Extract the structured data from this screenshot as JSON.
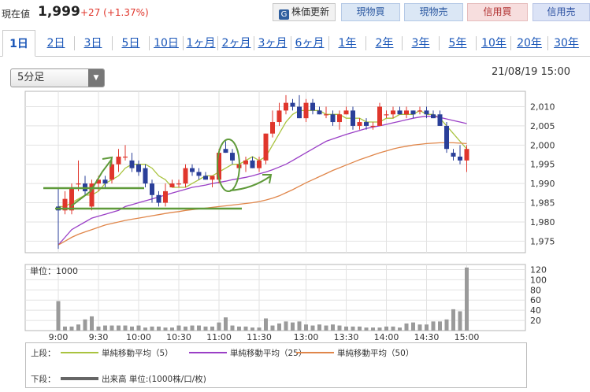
{
  "header": {
    "price_label": "現在値",
    "price": "1,999",
    "change": "+27 (+1.37%)",
    "buttons": {
      "update": "株価更新",
      "buy_spot": "現物買",
      "sell_spot": "現物売",
      "buy_margin": "信用買",
      "sell_margin": "信用売"
    }
  },
  "tabs": [
    "1日",
    "2日",
    "3日",
    "5日",
    "10日",
    "1ヶ月",
    "2ヶ月",
    "3ヶ月",
    "6ヶ月",
    "1年",
    "2年",
    "3年",
    "5年",
    "10年",
    "20年",
    "30年"
  ],
  "active_tab": "1日",
  "interval_select": "5分足",
  "datetime": "21/08/19 15:00",
  "legend": {
    "upper_label": "上段：",
    "lower_label": "下段：",
    "ma5": "単純移動平均（5）",
    "ma25": "単純移動平均（25）",
    "ma50": "単純移動平均（50）",
    "volume": "出来高 単位:(1000株/口/枚)"
  },
  "colors": {
    "up": "#e0362c",
    "down": "#2a3f99",
    "ma5": "#a9c33f",
    "ma25": "#9a3fc6",
    "ma50": "#e0864a",
    "volume": "#9a9a9a",
    "annotation": "#5f9a3a"
  },
  "chart_data": [
    {
      "type": "candlestick",
      "title": "",
      "x_tick_labels": [
        "9:00",
        "9:30",
        "10:00",
        "10:30",
        "11:00",
        "11:30",
        "13:00",
        "13:30",
        "14:00",
        "14:30",
        "15:00"
      ],
      "ylim": [
        1972,
        2014
      ],
      "y_ticks": [
        1975,
        1980,
        1985,
        1990,
        1995,
        2000,
        2005,
        2010
      ],
      "y_tick_labels": [
        "1,975",
        "1,980",
        "1,985",
        "1,990",
        "1,995",
        "2,000",
        "2,005",
        "2,010"
      ],
      "grid": true,
      "candles": [
        {
          "t": "9:00",
          "o": 1984,
          "h": 1989,
          "l": 1973,
          "c": 1983
        },
        {
          "t": "9:05",
          "o": 1983,
          "h": 1988,
          "l": 1982,
          "c": 1986
        },
        {
          "t": "9:10",
          "o": 1983,
          "h": 1990,
          "l": 1982,
          "c": 1989
        },
        {
          "t": "9:15",
          "o": 1990,
          "h": 1996,
          "l": 1988,
          "c": 1990
        },
        {
          "t": "9:20",
          "o": 1990,
          "h": 1992,
          "l": 1987,
          "c": 1988
        },
        {
          "t": "9:25",
          "o": 1984,
          "h": 1991,
          "l": 1983,
          "c": 1990
        },
        {
          "t": "9:30",
          "o": 1990,
          "h": 1992,
          "l": 1988,
          "c": 1991
        },
        {
          "t": "9:35",
          "o": 1991,
          "h": 1992,
          "l": 1989,
          "c": 1990
        },
        {
          "t": "9:40",
          "o": 1991,
          "h": 1996,
          "l": 1990,
          "c": 1995
        },
        {
          "t": "9:45",
          "o": 1995,
          "h": 1999,
          "l": 1993,
          "c": 1997
        },
        {
          "t": "9:50",
          "o": 1997,
          "h": 2000,
          "l": 1996,
          "c": 1997
        },
        {
          "t": "9:55",
          "o": 1996,
          "h": 1998,
          "l": 1993,
          "c": 1994
        },
        {
          "t": "10:00",
          "o": 1995,
          "h": 1996,
          "l": 1992,
          "c": 1993
        },
        {
          "t": "10:05",
          "o": 1994,
          "h": 1995,
          "l": 1989,
          "c": 1990
        },
        {
          "t": "10:10",
          "o": 1990,
          "h": 1991,
          "l": 1985,
          "c": 1987
        },
        {
          "t": "10:15",
          "o": 1987,
          "h": 1988,
          "l": 1984,
          "c": 1985
        },
        {
          "t": "10:20",
          "o": 1985,
          "h": 1990,
          "l": 1984,
          "c": 1988
        },
        {
          "t": "10:25",
          "o": 1989,
          "h": 1991,
          "l": 1989,
          "c": 1990
        },
        {
          "t": "10:30",
          "o": 1990,
          "h": 1991,
          "l": 1989,
          "c": 1990
        },
        {
          "t": "10:35",
          "o": 1990,
          "h": 1995,
          "l": 1989,
          "c": 1994
        },
        {
          "t": "10:40",
          "o": 1994,
          "h": 1995,
          "l": 1992,
          "c": 1993
        },
        {
          "t": "10:45",
          "o": 1993,
          "h": 1994,
          "l": 1991,
          "c": 1992
        },
        {
          "t": "10:50",
          "o": 1992,
          "h": 1993,
          "l": 1991,
          "c": 1991
        },
        {
          "t": "10:55",
          "o": 1991,
          "h": 1992,
          "l": 1989,
          "c": 1992
        },
        {
          "t": "11:00",
          "o": 1991,
          "h": 1999,
          "l": 1990,
          "c": 1998
        },
        {
          "t": "11:05",
          "o": 1999,
          "h": 2001,
          "l": 1998,
          "c": 1998
        },
        {
          "t": "11:10",
          "o": 1998,
          "h": 1999,
          "l": 1995,
          "c": 1996
        },
        {
          "t": "11:15",
          "o": 1994,
          "h": 1996,
          "l": 1993,
          "c": 1995
        },
        {
          "t": "11:20",
          "o": 1995,
          "h": 1997,
          "l": 1993,
          "c": 1996
        },
        {
          "t": "11:25",
          "o": 1996,
          "h": 1997,
          "l": 1994,
          "c": 1994
        },
        {
          "t": "11:30",
          "o": 1994,
          "h": 1997,
          "l": 1993,
          "c": 1996
        },
        {
          "t": "12:30",
          "o": 1996,
          "h": 2003,
          "l": 1995,
          "c": 2003
        },
        {
          "t": "12:35",
          "o": 2003,
          "h": 2009,
          "l": 2002,
          "c": 2006
        },
        {
          "t": "12:40",
          "o": 2006,
          "h": 2011,
          "l": 2005,
          "c": 2009
        },
        {
          "t": "12:45",
          "o": 2009,
          "h": 2013,
          "l": 2008,
          "c": 2011
        },
        {
          "t": "12:50",
          "o": 2011,
          "h": 2012,
          "l": 2009,
          "c": 2010
        },
        {
          "t": "12:55",
          "o": 2010,
          "h": 2013,
          "l": 2007,
          "c": 2007
        },
        {
          "t": "13:00",
          "o": 2007,
          "h": 2012,
          "l": 2006,
          "c": 2011
        },
        {
          "t": "13:05",
          "o": 2011,
          "h": 2012,
          "l": 2008,
          "c": 2009
        },
        {
          "t": "13:10",
          "o": 2009,
          "h": 2010,
          "l": 2008,
          "c": 2008
        },
        {
          "t": "13:15",
          "o": 2008,
          "h": 2010,
          "l": 2007,
          "c": 2008
        },
        {
          "t": "13:20",
          "o": 2008,
          "h": 2009,
          "l": 2005,
          "c": 2006
        },
        {
          "t": "13:25",
          "o": 2006,
          "h": 2009,
          "l": 2004,
          "c": 2008
        },
        {
          "t": "13:30",
          "o": 2008,
          "h": 2010,
          "l": 2008,
          "c": 2009
        },
        {
          "t": "13:35",
          "o": 2009,
          "h": 2010,
          "l": 2004,
          "c": 2005
        },
        {
          "t": "13:40",
          "o": 2005,
          "h": 2007,
          "l": 2004,
          "c": 2006
        },
        {
          "t": "13:45",
          "o": 2006,
          "h": 2007,
          "l": 2004,
          "c": 2005
        },
        {
          "t": "13:50",
          "o": 2005,
          "h": 2006,
          "l": 2004,
          "c": 2005
        },
        {
          "t": "13:55",
          "o": 2005,
          "h": 2011,
          "l": 2005,
          "c": 2010
        },
        {
          "t": "14:00",
          "o": 2008,
          "h": 2009,
          "l": 2007,
          "c": 2008
        },
        {
          "t": "14:05",
          "o": 2008,
          "h": 2010,
          "l": 2007,
          "c": 2009
        },
        {
          "t": "14:10",
          "o": 2009,
          "h": 2010,
          "l": 2008,
          "c": 2008
        },
        {
          "t": "14:15",
          "o": 2008,
          "h": 2010,
          "l": 2007,
          "c": 2009
        },
        {
          "t": "14:20",
          "o": 2009,
          "h": 2009,
          "l": 2007,
          "c": 2008
        },
        {
          "t": "14:25",
          "o": 2009,
          "h": 2010,
          "l": 2008,
          "c": 2009
        },
        {
          "t": "14:30",
          "o": 2009,
          "h": 2010,
          "l": 2007,
          "c": 2008
        },
        {
          "t": "14:35",
          "o": 2008,
          "h": 2009,
          "l": 2007,
          "c": 2007
        },
        {
          "t": "14:40",
          "o": 2008,
          "h": 2009,
          "l": 2005,
          "c": 2005
        },
        {
          "t": "14:45",
          "o": 2005,
          "h": 2006,
          "l": 1998,
          "c": 1999
        },
        {
          "t": "14:50",
          "o": 1998,
          "h": 1999,
          "l": 1996,
          "c": 1997
        },
        {
          "t": "14:55",
          "o": 1997,
          "h": 2000,
          "l": 1995,
          "c": 1996
        },
        {
          "t": "15:00",
          "o": 1996,
          "h": 2000,
          "l": 1993,
          "c": 1999
        }
      ],
      "series": [
        {
          "name": "単純移動平均（5）",
          "values": [
            1984,
            1984,
            1985,
            1986,
            1987,
            1987,
            1988,
            1990,
            1991,
            1992,
            1994,
            1995,
            1995,
            1995,
            1994,
            1992,
            1991,
            1989,
            1989,
            1989,
            1990,
            1991,
            1992,
            1992,
            1993,
            1994,
            1995,
            1995,
            1996,
            1997,
            1996,
            1997,
            2000,
            2003,
            2006,
            2008,
            2009,
            2009,
            2009,
            2009,
            2008,
            2008,
            2008,
            2007,
            2007,
            2007,
            2006,
            2006,
            2006,
            2007,
            2007,
            2008,
            2008,
            2008,
            2009,
            2008,
            2008,
            2007,
            2005,
            2003,
            2001,
            1999
          ]
        },
        {
          "name": "単純移動平均（25）",
          "values": [
            1974,
            1976,
            1978,
            1979,
            1980,
            1981,
            1981.5,
            1982,
            1982.5,
            1983,
            1984,
            1984.5,
            1985,
            1985.5,
            1986,
            1986.5,
            1987,
            1987.5,
            1988,
            1988.5,
            1989,
            1989.3,
            1989.6,
            1990,
            1990.3,
            1990.6,
            1991,
            1991.3,
            1991.6,
            1992,
            1992.5,
            1993,
            1993.6,
            1994.3,
            1995,
            1996,
            1997,
            1998,
            1999,
            2000,
            2001,
            2001.6,
            2002.2,
            2002.8,
            2003.3,
            2003.8,
            2004.3,
            2004.7,
            2005,
            2005.4,
            2005.8,
            2006.2,
            2006.6,
            2007,
            2007.3,
            2007.5,
            2007.5,
            2007.2,
            2006.8,
            2006.4,
            2006,
            2005.6
          ]
        },
        {
          "name": "単純移動平均（50）",
          "values": [
            1974,
            1975,
            1976,
            1976.8,
            1977.4,
            1978,
            1978.6,
            1979.2,
            1979.6,
            1980,
            1980.4,
            1980.7,
            1981,
            1981.3,
            1981.6,
            1981.9,
            1982.2,
            1982.5,
            1982.7,
            1983,
            1983.2,
            1983.4,
            1983.6,
            1983.8,
            1984,
            1984.2,
            1984.4,
            1984.6,
            1984.8,
            1985,
            1985.3,
            1985.7,
            1986.2,
            1986.8,
            1987.6,
            1988.4,
            1989.3,
            1990.2,
            1991,
            1991.8,
            1992.6,
            1993.4,
            1994.1,
            1994.8,
            1995.5,
            1996.2,
            1996.8,
            1997.4,
            1998,
            1998.5,
            1999,
            1999.4,
            1999.7,
            2000,
            2000.2,
            2000.4,
            2000.5,
            2000.6,
            2000.6,
            2000.6,
            2000.5,
            2000.4
          ]
        }
      ]
    },
    {
      "type": "bar",
      "title": "単位：1000",
      "ylim": [
        0,
        130
      ],
      "y_ticks": [
        20,
        40,
        60,
        80,
        100,
        120
      ],
      "y_tick_labels": [
        "20",
        "40",
        "60",
        "80",
        "100",
        "120"
      ],
      "values": [
        58,
        8,
        8,
        12,
        22,
        28,
        8,
        10,
        10,
        10,
        10,
        8,
        10,
        6,
        8,
        8,
        6,
        6,
        10,
        8,
        10,
        10,
        8,
        8,
        16,
        26,
        10,
        8,
        8,
        6,
        6,
        24,
        10,
        14,
        18,
        16,
        18,
        12,
        10,
        12,
        10,
        12,
        10,
        8,
        8,
        8,
        6,
        6,
        6,
        8,
        8,
        6,
        14,
        16,
        12,
        12,
        18,
        18,
        22,
        42,
        38,
        124
      ]
    }
  ]
}
